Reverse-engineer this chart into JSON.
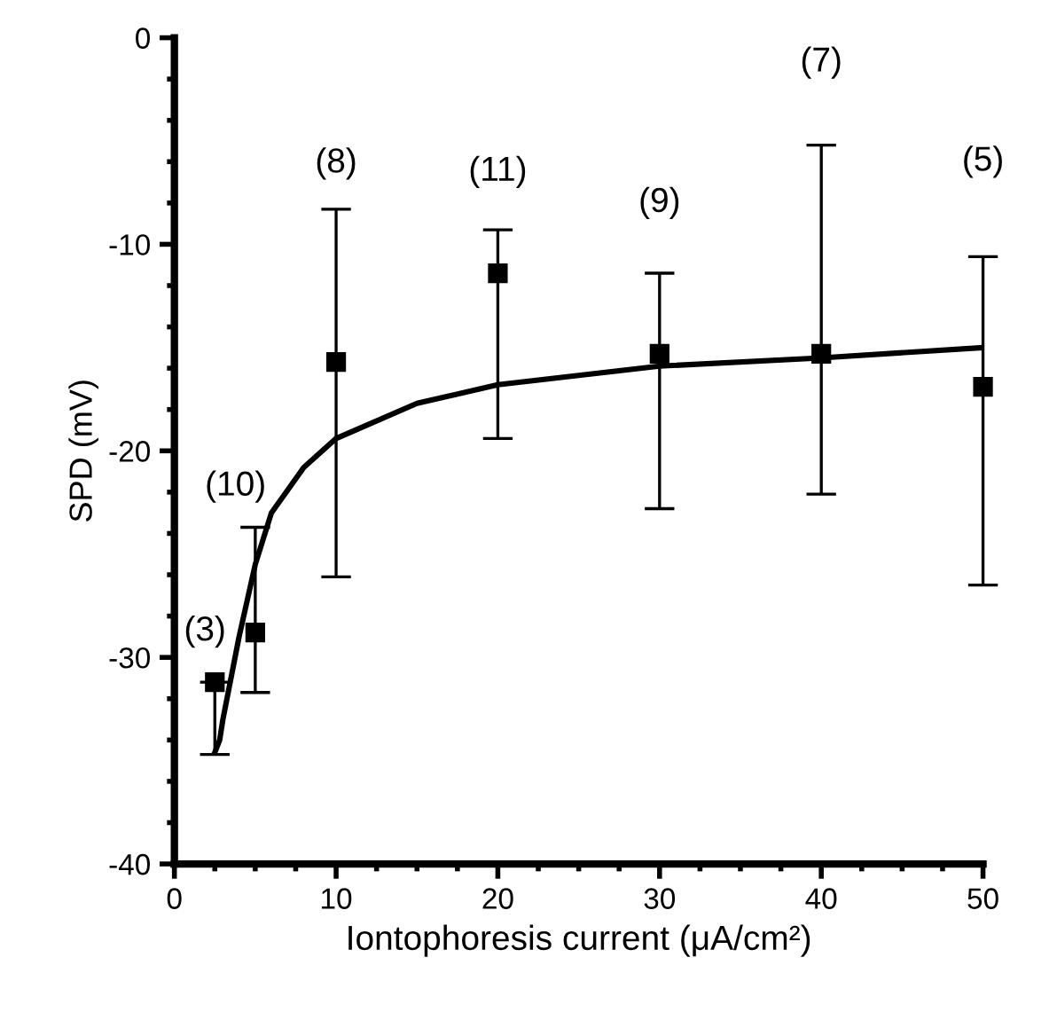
{
  "chart_data": {
    "type": "scatter",
    "xlabel": "Iontophoresis current (μA/cm²)",
    "ylabel": "SPD (mV)",
    "xlim": [
      0,
      50
    ],
    "ylim": [
      -40,
      0
    ],
    "xticks": [
      0,
      10,
      20,
      30,
      40,
      50
    ],
    "yticks": [
      -40,
      -30,
      -20,
      -10,
      0
    ],
    "grid": false,
    "legend": false,
    "series": [
      {
        "color": "#000000",
        "marker": "square",
        "x": [
          2.5,
          5,
          10,
          20,
          30,
          40,
          50
        ],
        "values": [
          -31.2,
          -28.8,
          -15.7,
          -11.4,
          -15.3,
          -15.3,
          -16.9
        ],
        "errors": [
          [
            -34.7,
            -31.2
          ],
          [
            -31.7,
            -23.7
          ],
          [
            -26.1,
            -8.3
          ],
          [
            -19.4,
            -9.3
          ],
          [
            -22.8,
            -11.4
          ],
          [
            -22.1,
            -5.2
          ],
          [
            -26.5,
            -10.6
          ]
        ]
      },
      {
        "type": "line",
        "color": "#000000",
        "marker": "none",
        "line_style": "solid",
        "x": [
          2.5,
          2.8,
          3,
          4,
          5,
          6,
          8,
          10,
          15,
          20,
          30,
          40,
          50
        ],
        "values": [
          -34.6,
          -34,
          -33,
          -29,
          -25.5,
          -23,
          -20.8,
          -19.4,
          -17.7,
          -16.8,
          -15.9,
          -15.5,
          -15.0
        ]
      }
    ],
    "annotations": [
      "(3)",
      "(10)",
      "(8)",
      "(11)",
      "(9)",
      "(7)",
      "(5)"
    ]
  }
}
